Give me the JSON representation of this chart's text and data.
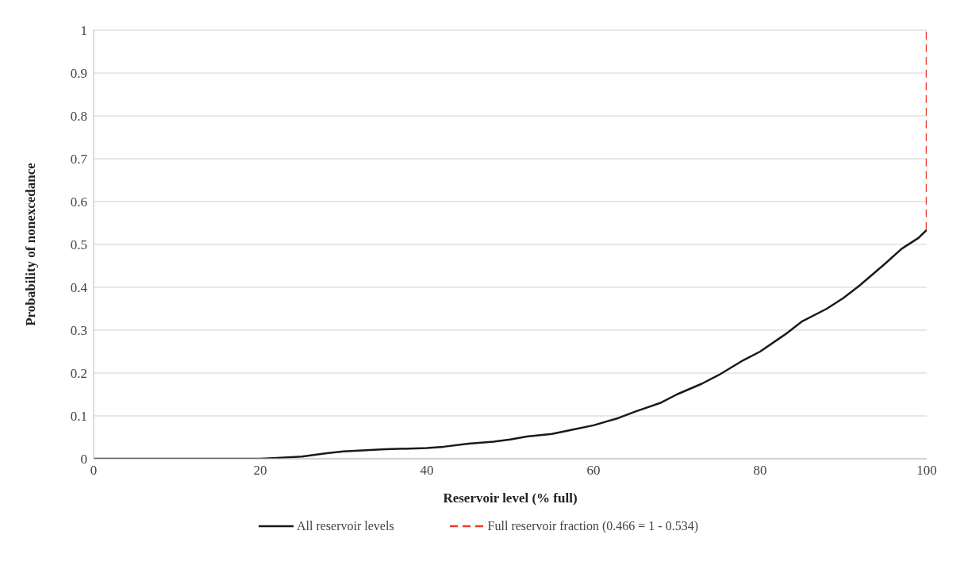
{
  "chart_data": {
    "type": "line",
    "xlabel": "Reservoir level (% full)",
    "ylabel": "Probability of nonexcedance",
    "xlim": [
      0,
      100
    ],
    "xticks": [
      0,
      20,
      40,
      60,
      80,
      100
    ],
    "ylim": [
      0,
      1
    ],
    "yticks": [
      0,
      0.1,
      0.2,
      0.3,
      0.4,
      0.5,
      0.6,
      0.7,
      0.8,
      0.9,
      1
    ],
    "grid": "y",
    "legend": "bottom",
    "marker": "none",
    "series": [
      {
        "name": "All reservoir levels",
        "color": "#1a1a1a",
        "line_style": "solid",
        "x": [
          0,
          5,
          10,
          15,
          20,
          22,
          25,
          28,
          30,
          35,
          40,
          42,
          45,
          48,
          50,
          52,
          55,
          58,
          60,
          63,
          65,
          68,
          70,
          73,
          75,
          78,
          80,
          83,
          85,
          88,
          90,
          92,
          95,
          97,
          99,
          100
        ],
        "values": [
          0,
          0,
          0,
          0,
          0,
          0.002,
          0.005,
          0.013,
          0.017,
          0.022,
          0.025,
          0.028,
          0.035,
          0.04,
          0.045,
          0.052,
          0.058,
          0.07,
          0.078,
          0.095,
          0.11,
          0.13,
          0.15,
          0.175,
          0.195,
          0.23,
          0.25,
          0.29,
          0.32,
          0.35,
          0.375,
          0.405,
          0.455,
          0.49,
          0.515,
          0.534
        ]
      },
      {
        "name": "Full reservoir fraction (0.466 = 1 - 0.534)",
        "color": "#e8392a",
        "line_style": "dashed",
        "x": [
          100,
          100
        ],
        "values": [
          0.534,
          1
        ]
      }
    ]
  }
}
